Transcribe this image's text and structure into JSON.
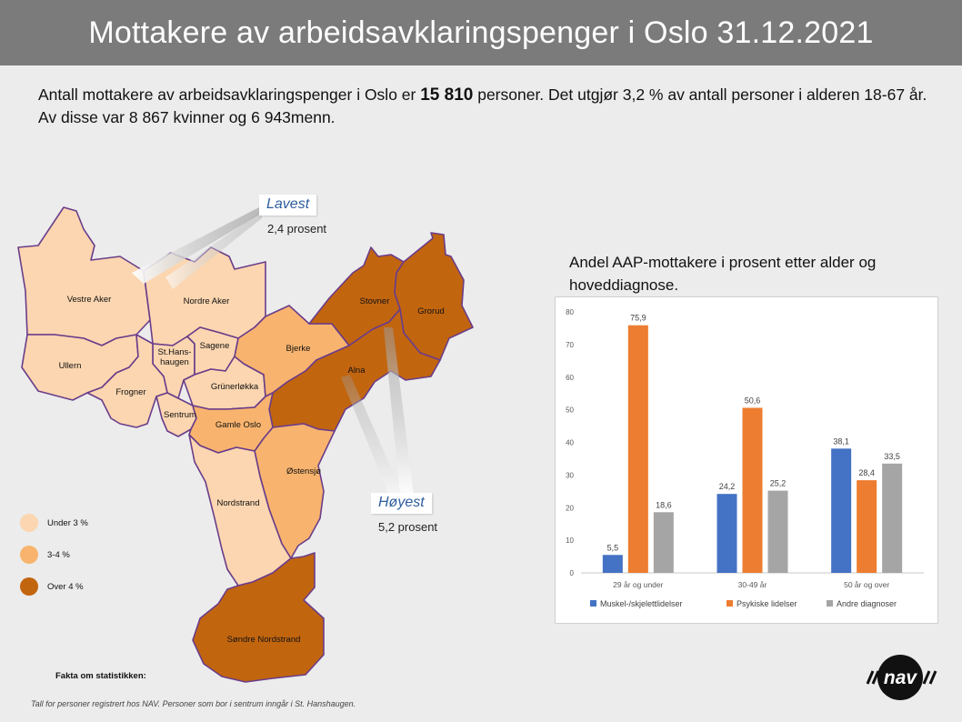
{
  "title": "Mottakere av arbeidsavklaringspenger  i Oslo 31.12.2021",
  "intro": {
    "part1": "Antall mottakere av arbeidsavklaringspenger i Oslo er ",
    "total": "15 810",
    "part2": " personer. Det utgjør 3,2 % av antall personer i alderen 18-67 år. Av disse var 8 867 kvinner og 6 943menn."
  },
  "map": {
    "lowest": {
      "title": "Lavest",
      "value": "2,4 prosent"
    },
    "highest": {
      "title": "Høyest",
      "value": "5,2 prosent"
    },
    "colors": {
      "under3": "#fbd6b0",
      "3to4": "#f8b46e",
      "over4": "#c2650f",
      "border": "#6a3d8a"
    },
    "legend": [
      {
        "label": "Under 3 %",
        "color": "#fbd6b0"
      },
      {
        "label": "3-4 %",
        "color": "#f8b46e"
      },
      {
        "label": "Over 4 %",
        "color": "#c2650f"
      }
    ],
    "districts": [
      {
        "name": "Vestre Aker",
        "class": "under3"
      },
      {
        "name": "Nordre Aker",
        "class": "under3"
      },
      {
        "name": "Ullern",
        "class": "under3"
      },
      {
        "name": "St.Hans-\nhaugen",
        "class": "under3"
      },
      {
        "name": "Sagene",
        "class": "under3"
      },
      {
        "name": "Frogner",
        "class": "under3"
      },
      {
        "name": "Sentrum",
        "class": "under3"
      },
      {
        "name": "Grünerløkka",
        "class": "under3"
      },
      {
        "name": "Bjerke",
        "class": "3to4"
      },
      {
        "name": "Stovner",
        "class": "over4"
      },
      {
        "name": "Grorud",
        "class": "over4"
      },
      {
        "name": "Alna",
        "class": "over4"
      },
      {
        "name": "Gamle Oslo",
        "class": "3to4"
      },
      {
        "name": "Østensjø",
        "class": "3to4"
      },
      {
        "name": "Nordstrand",
        "class": "under3"
      },
      {
        "name": "Søndre Nordstrand",
        "class": "over4"
      }
    ]
  },
  "chart_data": {
    "type": "bar",
    "title": "Andel AAP-mottakere i prosent etter alder og hoveddiagnose.",
    "categories": [
      "29 år og under",
      "30-49 år",
      "50 år og over"
    ],
    "series": [
      {
        "name": "Muskel-/skjelettlidelser",
        "color": "#4472c4",
        "values": [
          5.5,
          24.2,
          38.1
        ],
        "labels": [
          "5,5",
          "24,2",
          "38,1"
        ]
      },
      {
        "name": "Psykiske lidelser",
        "color": "#ed7d31",
        "values": [
          75.9,
          50.6,
          28.4
        ],
        "labels": [
          "75,9",
          "50,6",
          "28,4"
        ]
      },
      {
        "name": "Andre diagnoser",
        "color": "#a5a5a5",
        "values": [
          18.6,
          25.2,
          33.5
        ],
        "labels": [
          "18,6",
          "25,2",
          "33,5"
        ]
      }
    ],
    "ylim": [
      0,
      80
    ],
    "yticks": [
      0,
      10,
      20,
      30,
      40,
      50,
      60,
      70,
      80
    ],
    "grid": false,
    "legend": "bottom"
  },
  "facts_title": "Fakta om statistikken:",
  "footnote": "Tall for personer registrert hos NAV. Personer som bor i sentrum inngår i St. Hanshaugen.",
  "logo_text": "nav"
}
